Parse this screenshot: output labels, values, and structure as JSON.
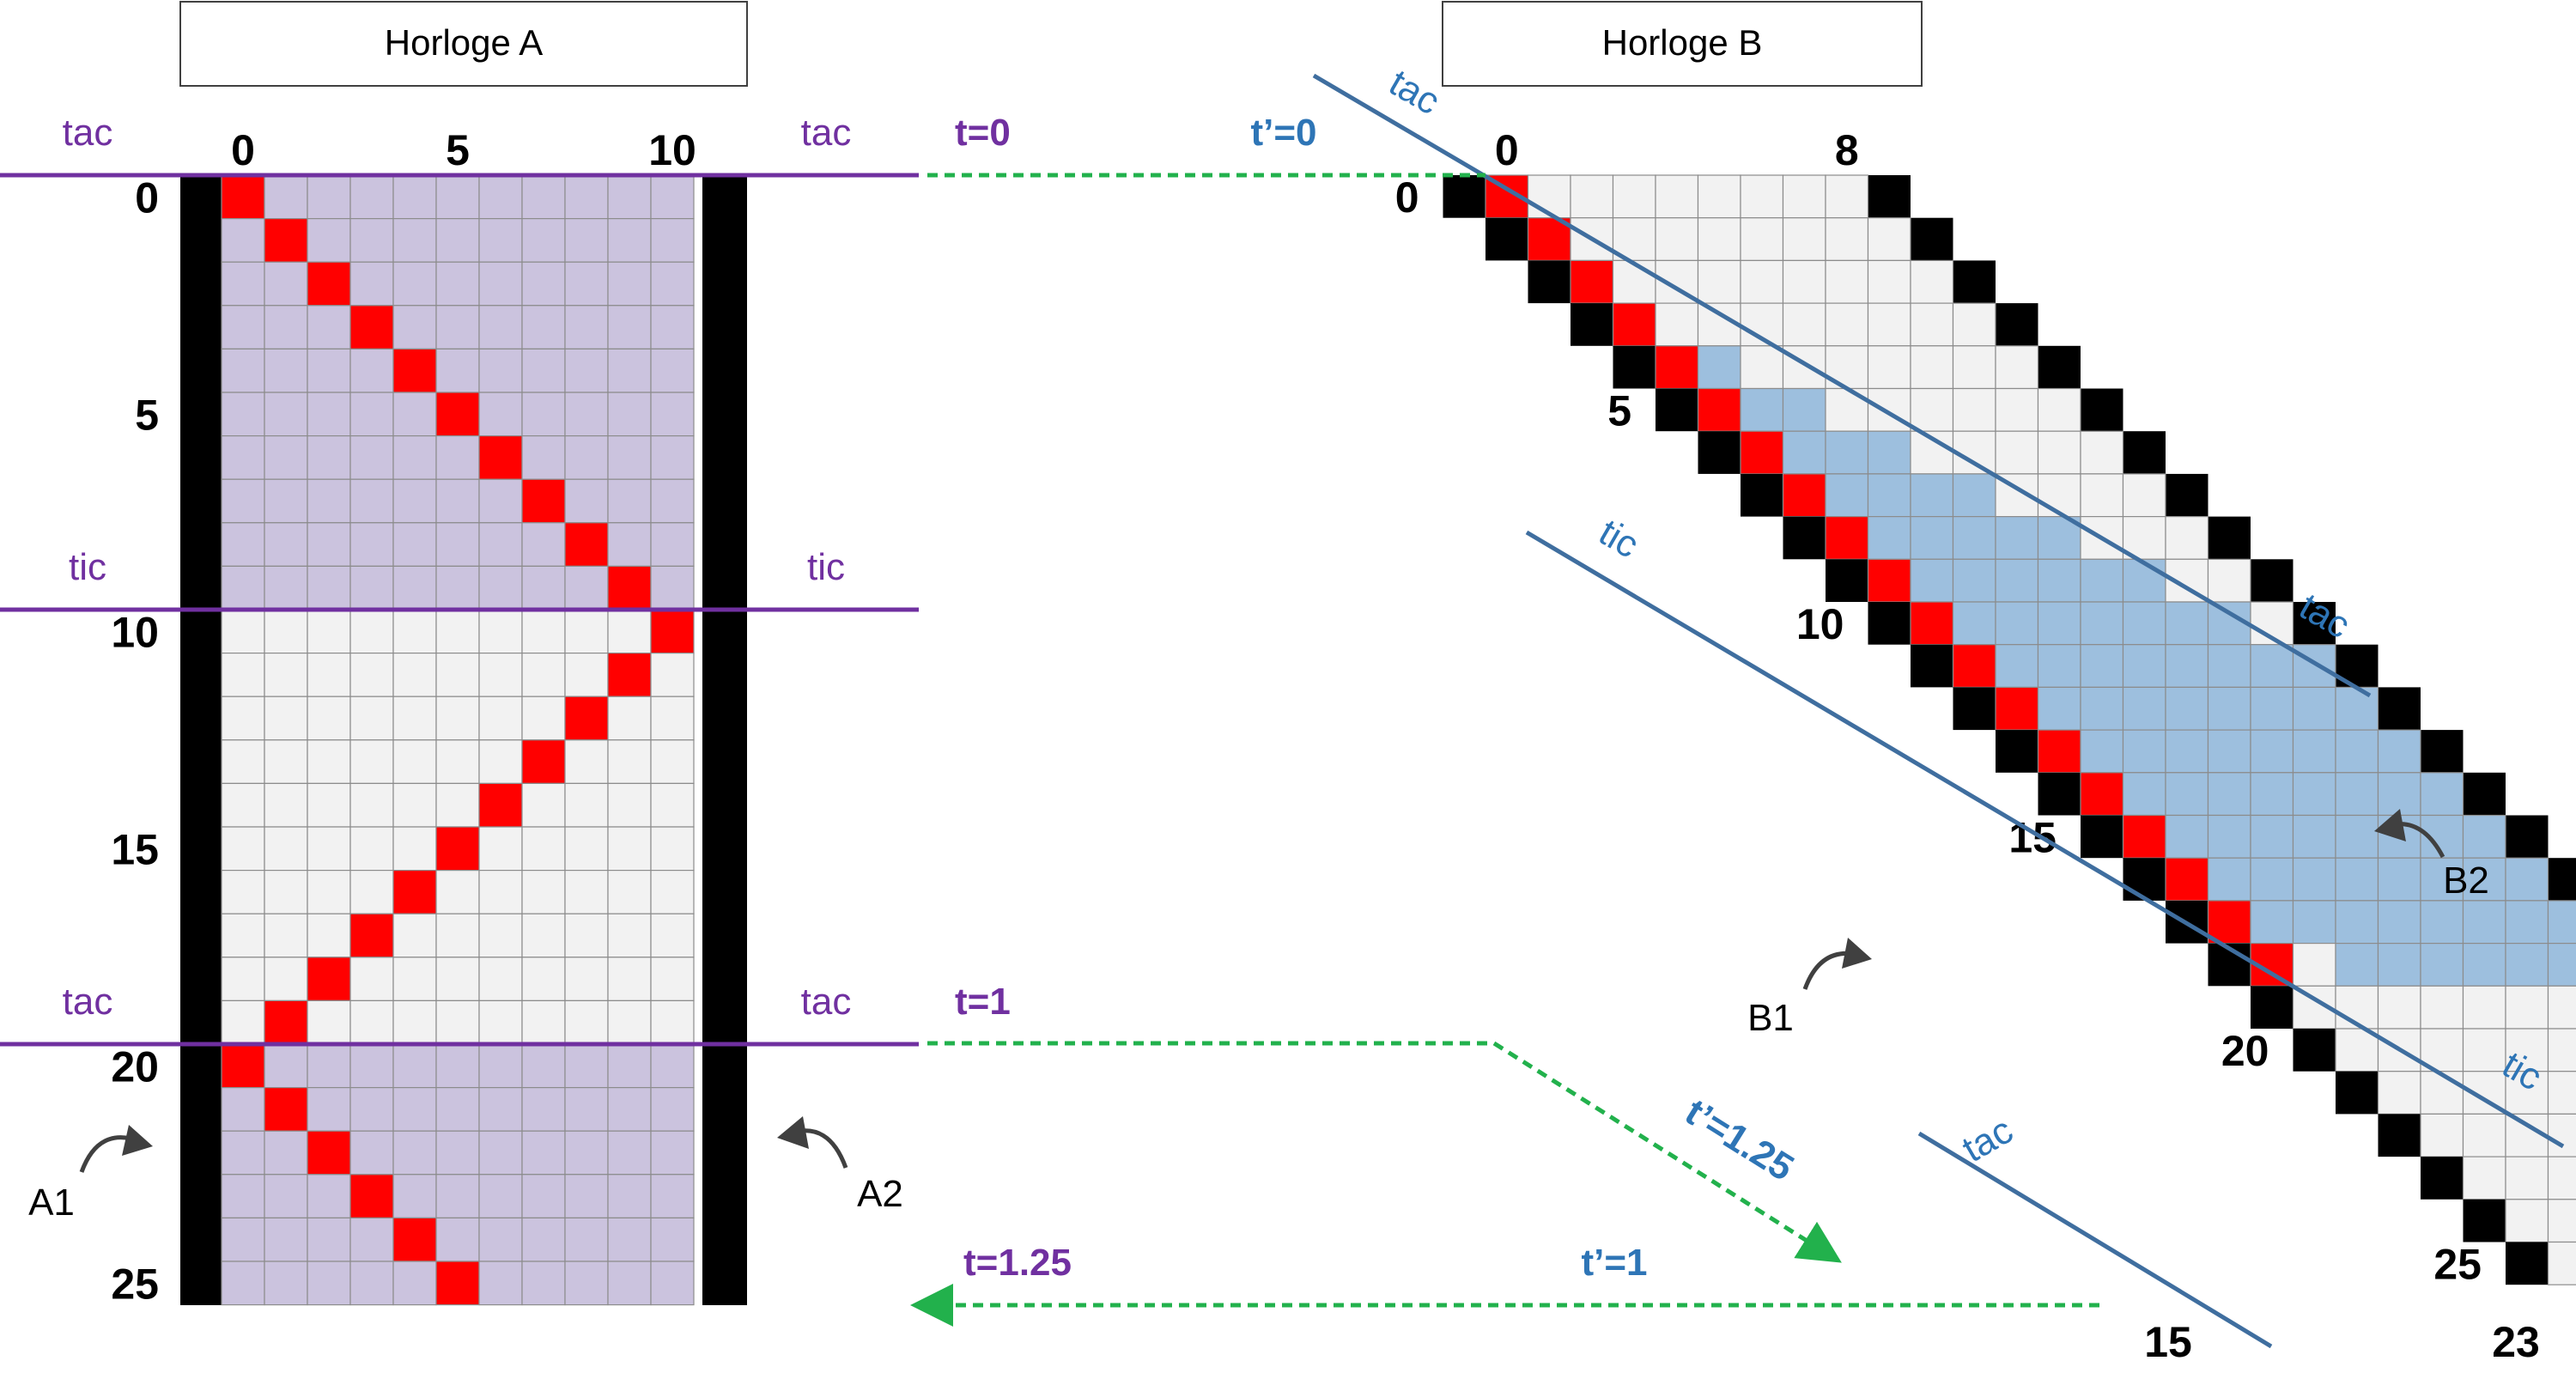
{
  "colors": {
    "purple": "#7030A0",
    "blue": "#2E75B6",
    "steel": "#3F6E9F",
    "green": "#22B14C",
    "red": "#FF0000",
    "black": "#000000",
    "grid_line": "#8C8C8C",
    "light_cell": "#F2F2F2",
    "purple_cell": "#CBC3DE",
    "blue_cell": "#9DBFDE",
    "arrow_gray": "#404040"
  },
  "clock_a": {
    "title": "Horloge A",
    "cols": 11,
    "rows": 26,
    "col_labels": [
      {
        "col": 0,
        "text": "0"
      },
      {
        "col": 5,
        "text": "5"
      },
      {
        "col": 10,
        "text": "10"
      }
    ],
    "row_labels": [
      {
        "row": 0,
        "text": "0"
      },
      {
        "row": 5,
        "text": "5"
      },
      {
        "row": 10,
        "text": "10"
      },
      {
        "row": 15,
        "text": "15"
      },
      {
        "row": 20,
        "text": "20"
      },
      {
        "row": 25,
        "text": "25"
      }
    ],
    "purple_bands": [
      [
        0,
        9
      ],
      [
        20,
        25
      ]
    ],
    "ticks": [
      {
        "after_row": -1,
        "left": "tac",
        "right": "tac",
        "t": "t=0"
      },
      {
        "after_row": 9,
        "left": "tic",
        "right": "tic",
        "t": ""
      },
      {
        "after_row": 19,
        "left": "tac",
        "right": "tac",
        "t": "t=1"
      }
    ],
    "mirror_labels": [
      "A1",
      "A2"
    ]
  },
  "clock_b": {
    "title": "Horloge B",
    "cols": 9,
    "rows": 26,
    "col_labels_top": [
      {
        "col": 0,
        "text": "0"
      },
      {
        "col": 8,
        "text": "8"
      }
    ],
    "col_labels_bottom": [
      {
        "col": 15,
        "text": "15"
      },
      {
        "col": 23,
        "text": "23"
      }
    ],
    "row_labels": [
      {
        "row": 0,
        "text": "0"
      },
      {
        "row": 5,
        "text": "5"
      },
      {
        "row": 10,
        "text": "10"
      },
      {
        "row": 15,
        "text": "15"
      },
      {
        "row": 20,
        "text": "20"
      },
      {
        "row": 25,
        "text": "25"
      }
    ],
    "blue_band_rows": [
      3,
      18
    ],
    "line_labels": [
      {
        "id": "line1",
        "top": "tac",
        "bottom": "tac"
      },
      {
        "id": "line2",
        "top": "tic",
        "bottom": "tic"
      },
      {
        "id": "line3",
        "top": "tac",
        "bottom": ""
      }
    ],
    "mirror_labels": [
      "B1",
      "B2"
    ]
  },
  "sync": {
    "t_prime_0": "t’=0",
    "t_prime_125": "t’=1.25",
    "t_prime_1": "t’=1",
    "t_125": "t=1.25"
  }
}
